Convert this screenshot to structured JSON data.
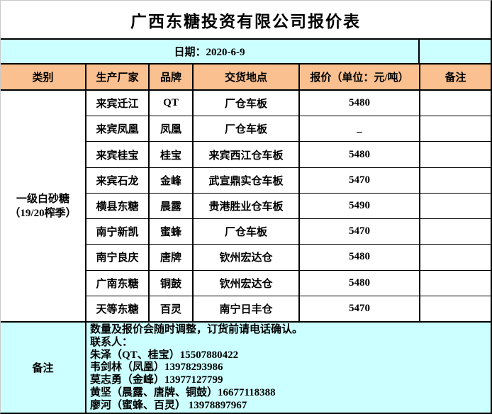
{
  "meta": {
    "company_title": "广西东糖投资有限公司报价表",
    "date_line": "日期：2020-6-9"
  },
  "colors": {
    "header_bg": "#FAC090",
    "section_bg": "#CCFFFF",
    "grid": "#000000",
    "text": "#000000"
  },
  "table": {
    "columns": [
      "类别",
      "生产厂家",
      "品牌",
      "交货地点",
      "报价（单位：元/吨）",
      "备注"
    ],
    "category": {
      "line1": "一级白砂糖",
      "line2": "（19/20榨季）"
    },
    "rows": [
      {
        "manufacturer": "来宾迁江",
        "brand": "QT",
        "location": "厂仓车板",
        "price": "5480",
        "note": ""
      },
      {
        "manufacturer": "来宾凤凰",
        "brand": "凤凰",
        "location": "厂仓车板",
        "price": "_",
        "note": ""
      },
      {
        "manufacturer": "来宾桂宝",
        "brand": "桂宝",
        "location": "来宾西江仓车板",
        "price": "5480",
        "note": ""
      },
      {
        "manufacturer": "来宾石龙",
        "brand": "金峰",
        "location": "武宣鼎实仓车板",
        "price": "5470",
        "note": ""
      },
      {
        "manufacturer": "横县东糖",
        "brand": "晨露",
        "location": "贵港胜业仓车板",
        "price": "5490",
        "note": ""
      },
      {
        "manufacturer": "南宁新凯",
        "brand": "蜜蜂",
        "location": "厂仓车板",
        "price": "5470",
        "note": ""
      },
      {
        "manufacturer": "南宁良庆",
        "brand": "唐牌",
        "location": "钦州宏达仓",
        "price": "5480",
        "note": ""
      },
      {
        "manufacturer": "广南东糖",
        "brand": "铜鼓",
        "location": "钦州宏达仓",
        "price": "5480",
        "note": ""
      },
      {
        "manufacturer": "天等东糖",
        "brand": "百灵",
        "location": "南宁日丰仓",
        "price": "5470",
        "note": ""
      }
    ]
  },
  "remark": {
    "label": "备注",
    "lines": [
      "数量及报价会随时调整，订货前请电话确认。",
      "联系人：",
      "朱泽（QT、桂宝）15507880422",
      "韦剑林（凤凰）13978293986",
      "莫志勇（金峰）13977127799",
      "黄坚（晨露、唐牌、铜鼓）16677118388",
      "廖河（蜜蜂、百灵） 13978897967"
    ]
  }
}
